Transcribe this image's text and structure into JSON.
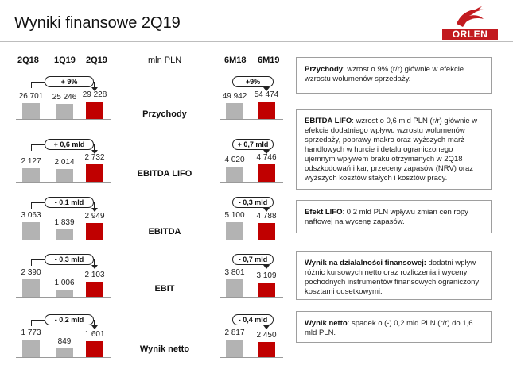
{
  "title": "Wyniki finansowe 2Q19",
  "logo": {
    "text": "ORLEN"
  },
  "headers": {
    "q1": "2Q18",
    "q2": "1Q19",
    "q3": "2Q19",
    "unit": "mln PLN",
    "h1": "6M18",
    "h2": "6M19"
  },
  "rows": [
    {
      "label": "Przychody",
      "quarter_values": [
        "26 701",
        "25 246",
        "29 228"
      ],
      "quarter_change": "+ 9%",
      "half_values": [
        "49 942",
        "54 474"
      ],
      "half_change": "+9%",
      "note_bold": "Przychody",
      "note_text": ": wzrost o 9% (r/r) głównie w efekcie wzrostu wolumenów sprzedaży."
    },
    {
      "label": "EBITDA LIFO",
      "quarter_values": [
        "2 127",
        "2 014",
        "2 732"
      ],
      "quarter_change": "+ 0,6 mld",
      "half_values": [
        "4 020",
        "4 746"
      ],
      "half_change": "+ 0,7 mld",
      "note_bold": "EBITDA LIFO",
      "note_text": ": wzrost o 0,6 mld PLN (r/r) głównie w efekcie dodatniego wpływu wzrostu wolumenów sprzedaży, poprawy makro oraz wyższych marż handlowych w hurcie i detalu ograniczonego ujemnym wpływem braku otrzymanych w 2Q18 odszkodowań i kar, przeceny zapasów (NRV) oraz wyższych kosztów stałych i kosztów pracy."
    },
    {
      "label": "EBITDA",
      "quarter_values": [
        "3 063",
        "1 839",
        "2 949"
      ],
      "quarter_change": "- 0,1 mld",
      "half_values": [
        "5 100",
        "4 788"
      ],
      "half_change": "- 0,3 mld",
      "note_bold": "Efekt LIFO",
      "note_text": ": 0,2 mld PLN wpływu zmian cen ropy naftowej na wycenę zapasów."
    },
    {
      "label": "EBIT",
      "quarter_values": [
        "2 390",
        "1 006",
        "2 103"
      ],
      "quarter_change": "- 0,3 mld",
      "half_values": [
        "3 801",
        "3 109"
      ],
      "half_change": "- 0,7 mld",
      "note_bold": "Wynik na działalności finansowej:",
      "note_text": " dodatni wpływ różnic kursowych netto oraz rozliczenia i wyceny pochodnych instrumentów finansowych ograniczony kosztami odsetkowymi."
    },
    {
      "label": "Wynik netto",
      "quarter_values": [
        "1 773",
        "849",
        "1 601"
      ],
      "quarter_change": "- 0,2 mld",
      "half_values": [
        "2 817",
        "2 450"
      ],
      "half_change": "- 0,4 mld",
      "note_bold": "Wynik netto",
      "note_text": ": spadek o (-) 0,2 mld PLN (r/r) do 1,6 mld PLN."
    }
  ],
  "colors": {
    "grey_bar": "#b3b3b3",
    "red_bar": "#c00000",
    "logo_red": "#c21a1f"
  }
}
